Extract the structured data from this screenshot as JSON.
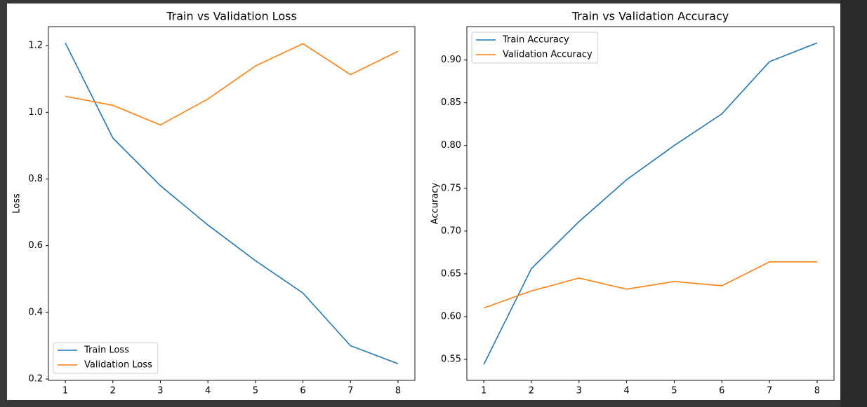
{
  "chart_data": [
    {
      "type": "line",
      "title": "Train vs Validation Loss",
      "ylabel": "Loss",
      "x": [
        1,
        2,
        3,
        4,
        5,
        6,
        7,
        8
      ],
      "series": [
        {
          "name": "Train Loss",
          "color": "#1f77b4",
          "values": [
            1.208,
            0.923,
            0.78,
            0.662,
            0.555,
            0.458,
            0.3,
            0.246
          ]
        },
        {
          "name": "Validation Loss",
          "color": "#ff7f0e",
          "values": [
            1.048,
            1.021,
            0.962,
            1.04,
            1.139,
            1.206,
            1.113,
            1.183
          ]
        }
      ],
      "xlim": [
        0.645,
        8.355
      ],
      "xticks": [
        1,
        2,
        3,
        4,
        5,
        6,
        7,
        8
      ],
      "ylim": [
        0.196,
        1.257
      ],
      "yticks": [
        0.2,
        0.4,
        0.6,
        0.8,
        {
          "value": 1.0,
          "label": "1.0"
        },
        1.2
      ],
      "legend": "lower left"
    },
    {
      "type": "line",
      "title": "Train vs Validation Accuracy",
      "ylabel": "Accuracy",
      "x": [
        1,
        2,
        3,
        4,
        5,
        6,
        7,
        8
      ],
      "series": [
        {
          "name": "Train Accuracy",
          "color": "#1f77b4",
          "values": [
            0.544,
            0.656,
            0.711,
            0.76,
            0.8,
            0.837,
            0.898,
            0.92
          ]
        },
        {
          "name": "Validation Accuracy",
          "color": "#ff7f0e",
          "values": [
            0.61,
            0.63,
            0.645,
            0.632,
            0.641,
            0.636,
            0.664,
            0.664
          ]
        }
      ],
      "xlim": [
        0.645,
        8.355
      ],
      "xticks": [
        1,
        2,
        3,
        4,
        5,
        6,
        7,
        8
      ],
      "ylim": [
        0.5254,
        0.939
      ],
      "yticks": [
        {
          "value": 0.55,
          "label": "0.55"
        },
        {
          "value": 0.6,
          "label": "0.60"
        },
        {
          "value": 0.65,
          "label": "0.65"
        },
        {
          "value": 0.7,
          "label": "0.70"
        },
        {
          "value": 0.75,
          "label": "0.75"
        },
        {
          "value": 0.8,
          "label": "0.80"
        },
        {
          "value": 0.85,
          "label": "0.85"
        },
        {
          "value": 0.9,
          "label": "0.90"
        }
      ],
      "legend": "upper left"
    }
  ]
}
